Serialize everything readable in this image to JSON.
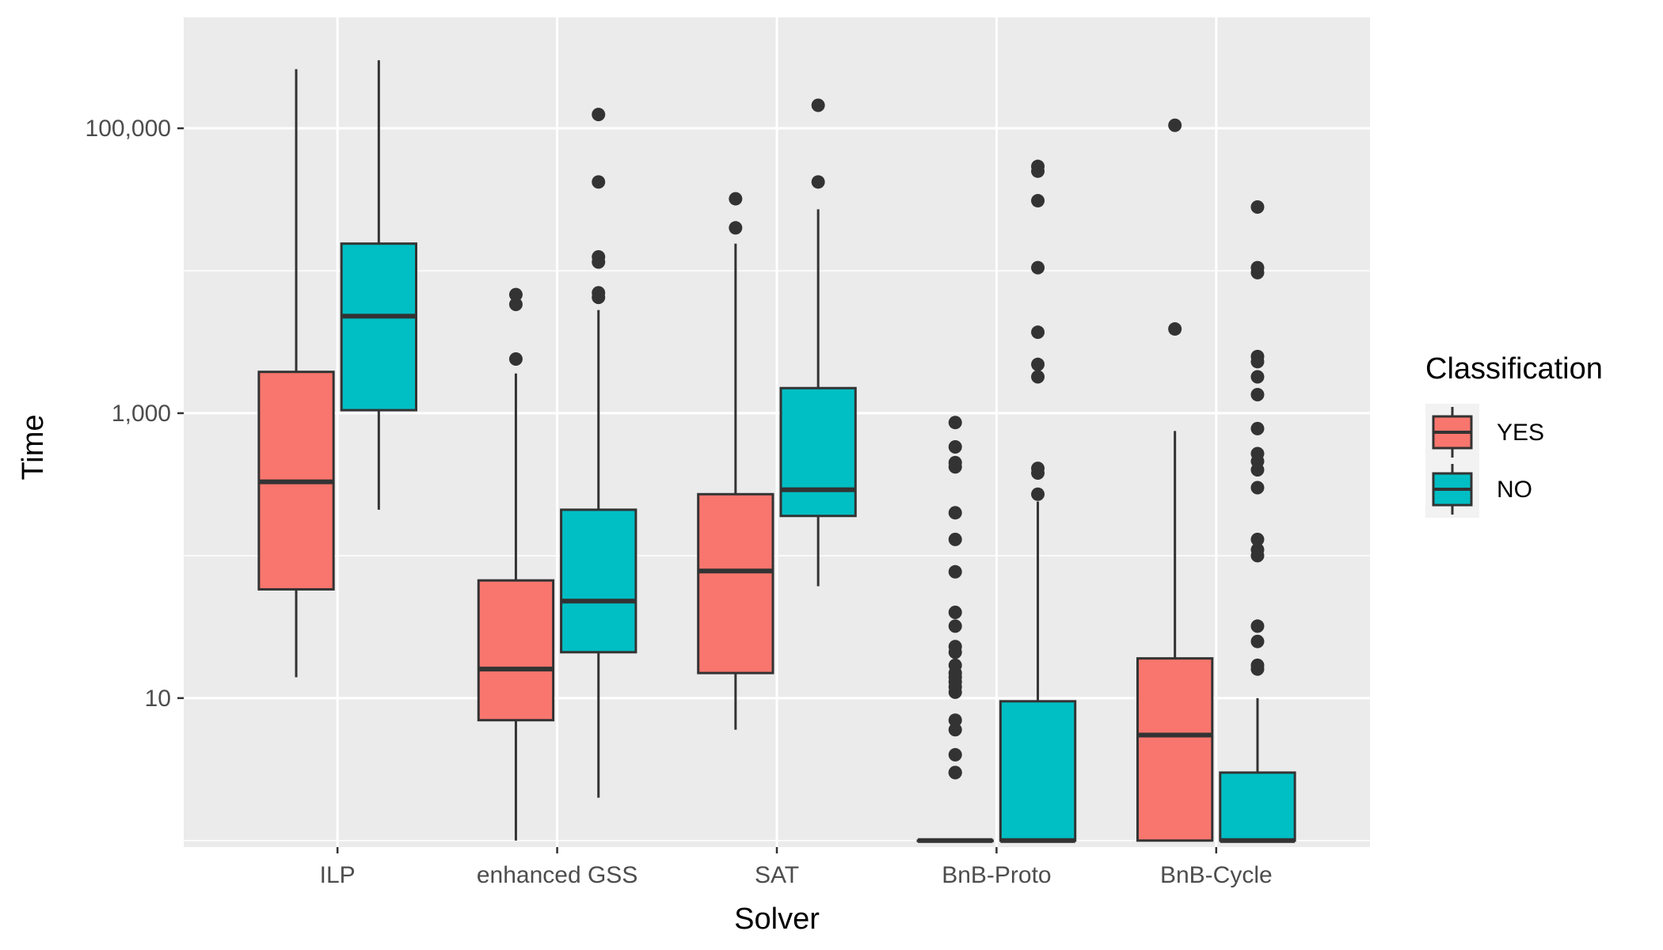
{
  "chart_data": {
    "type": "boxplot",
    "title": "",
    "xlabel": "Solver",
    "ylabel": "Time",
    "y_scale": "log10",
    "ylim": [
      0.9,
      600000
    ],
    "y_ticks": [
      10,
      1000,
      100000
    ],
    "y_tick_labels": [
      "10",
      "1,000",
      "100,000"
    ],
    "categories": [
      "ILP",
      "enhanced GSS",
      "SAT",
      "BnB-Proto",
      "BnB-Cycle"
    ],
    "legend": {
      "title": "Classification",
      "position": "right",
      "entries": [
        {
          "label": "YES",
          "color": "#F8766D"
        },
        {
          "label": "NO",
          "color": "#00BFC4"
        }
      ]
    },
    "grid": true,
    "series": [
      {
        "name": "YES",
        "color": "#F8766D",
        "boxes": [
          {
            "category": "ILP",
            "min": 14,
            "q1": 58,
            "median": 330,
            "q3": 1950,
            "max": 260000,
            "outliers": []
          },
          {
            "category": "enhanced GSS",
            "min": 1,
            "q1": 7,
            "median": 16,
            "q3": 67,
            "max": 1900,
            "outliers": [
              2400,
              5800,
              6800
            ]
          },
          {
            "category": "SAT",
            "min": 6,
            "q1": 15,
            "median": 78,
            "q3": 270,
            "max": 15500,
            "outliers": [
              20000,
              32000
            ]
          },
          {
            "category": "BnB-Proto",
            "min": 1,
            "q1": 1,
            "median": 1,
            "q3": 1,
            "max": 1,
            "outliers": [
              3,
              3,
              4,
              6,
              7,
              11,
              12,
              13,
              14,
              15,
              17,
              21,
              23,
              32,
              40,
              77,
              130,
              200,
              420,
              450,
              580,
              860
            ]
          },
          {
            "category": "BnB-Cycle",
            "min": 1,
            "q1": 1,
            "median": 5.5,
            "q3": 19,
            "max": 750,
            "outliers": [
              3900,
              105000
            ]
          }
        ]
      },
      {
        "name": "NO",
        "color": "#00BFC4",
        "boxes": [
          {
            "category": "ILP",
            "min": 210,
            "q1": 1050,
            "median": 4800,
            "q3": 15500,
            "max": 300000,
            "outliers": []
          },
          {
            "category": "enhanced GSS",
            "min": 2,
            "q1": 21,
            "median": 48,
            "q3": 210,
            "max": 5300,
            "outliers": [
              6500,
              7000,
              11500,
              12500,
              42000,
              125000
            ]
          },
          {
            "category": "SAT",
            "min": 61,
            "q1": 190,
            "median": 290,
            "q3": 1500,
            "max": 27000,
            "outliers": [
              42000,
              145000
            ]
          },
          {
            "category": "BnB-Proto",
            "min": 1,
            "q1": 1,
            "median": 1,
            "q3": 9.5,
            "max": 240,
            "outliers": [
              270,
              380,
              410,
              1800,
              2200,
              3700,
              10500,
              31000,
              50000,
              54000
            ]
          },
          {
            "category": "BnB-Cycle",
            "min": 1,
            "q1": 1,
            "median": 1,
            "q3": 3,
            "max": 10,
            "outliers": [
              16,
              17,
              25,
              32,
              100,
              110,
              130,
              300,
              400,
              460,
              520,
              780,
              1350,
              1800,
              2300,
              2500,
              9700,
              10500,
              28000
            ]
          }
        ]
      }
    ]
  }
}
